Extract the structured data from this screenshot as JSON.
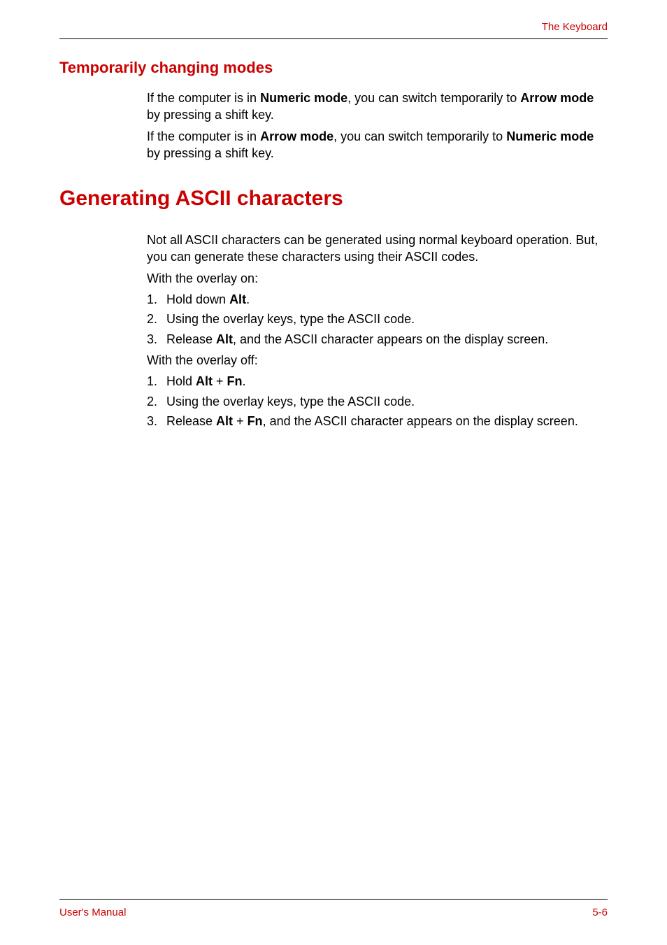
{
  "header": {
    "chapter_title": "The Keyboard"
  },
  "section1": {
    "heading": "Temporarily changing modes",
    "para1_pre": "If the computer is in ",
    "para1_bold1": "Numeric mode",
    "para1_mid": ", you can switch temporarily to ",
    "para1_bold2": "Arrow mode",
    "para1_post": " by pressing a shift key.",
    "para2_pre": "If the computer is in ",
    "para2_bold1": "Arrow mode",
    "para2_mid": ", you can switch temporarily to ",
    "para2_bold2": "Numeric mode",
    "para2_post": " by pressing a shift key."
  },
  "section2": {
    "heading": "Generating ASCII characters",
    "intro": "Not all ASCII characters can be generated using normal keyboard operation. But, you can generate these characters using their ASCII codes.",
    "overlay_on_label": "With the overlay on:",
    "on_items": {
      "i1_num": "1.",
      "i1_pre": "Hold down ",
      "i1_bold": "Alt",
      "i1_post": ".",
      "i2_num": "2.",
      "i2_text": "Using the overlay keys, type the ASCII code.",
      "i3_num": "3.",
      "i3_pre": "Release ",
      "i3_bold": "Alt",
      "i3_post": ", and the ASCII character appears on the display screen."
    },
    "overlay_off_label": "With the overlay off:",
    "off_items": {
      "i1_num": "1.",
      "i1_pre": "Hold ",
      "i1_bold1": "Alt",
      "i1_mid": " + ",
      "i1_bold2": "Fn",
      "i1_post": ".",
      "i2_num": "2.",
      "i2_text": "Using the overlay keys, type the ASCII code.",
      "i3_num": "3.",
      "i3_pre": "Release ",
      "i3_bold1": "Alt",
      "i3_mid": " + ",
      "i3_bold2": "Fn",
      "i3_post": ", and the ASCII character appears on the display screen."
    }
  },
  "footer": {
    "left": "User's Manual",
    "right": "5-6"
  }
}
